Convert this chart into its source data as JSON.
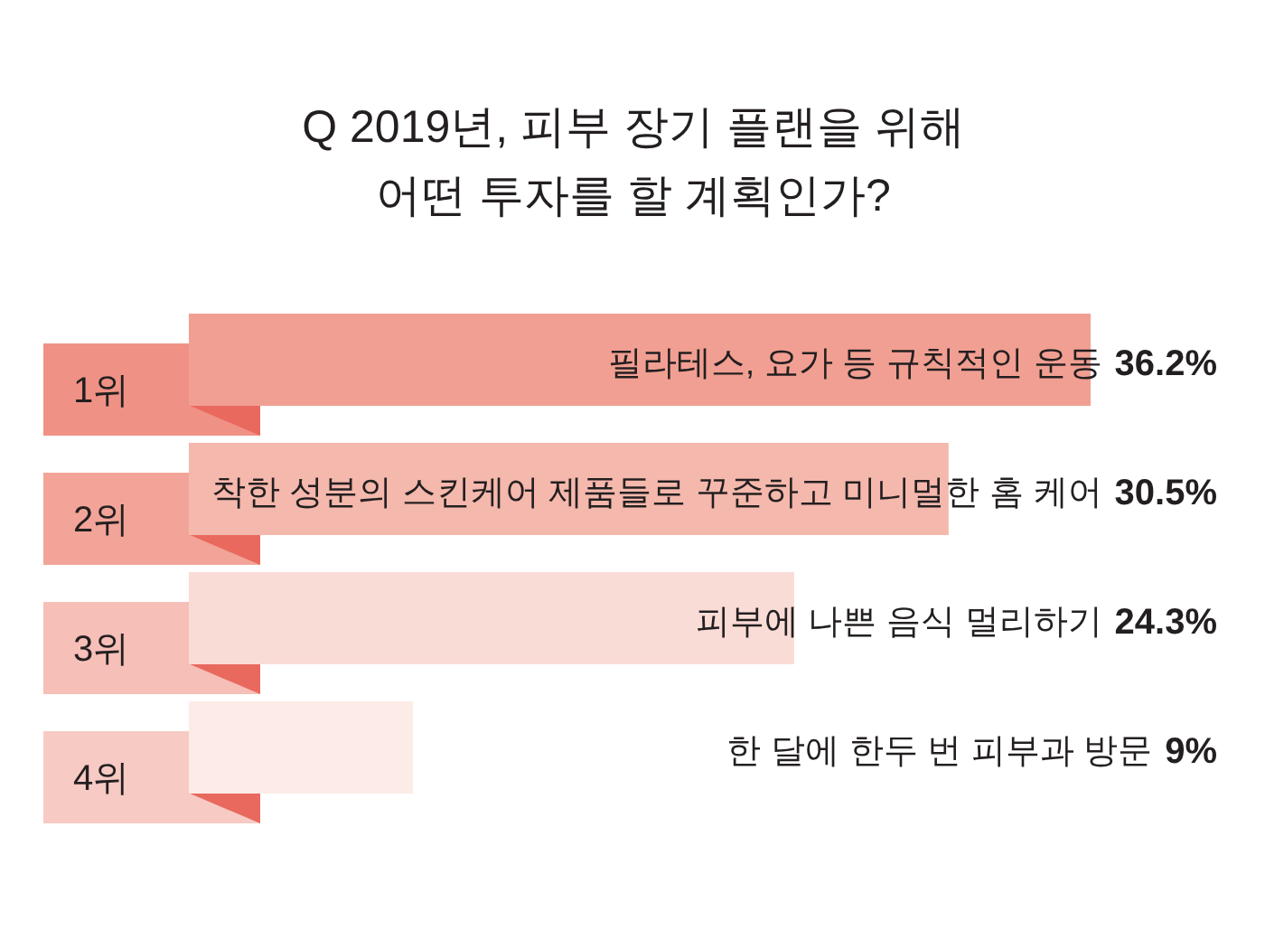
{
  "chart_data": {
    "type": "bar",
    "orientation": "horizontal",
    "title": "Q 2019년, 피부 장기 플랜을 위해\n어떤 투자를 할 계획인가?",
    "categories": [
      "1위",
      "2위",
      "3위",
      "4위"
    ],
    "values": [
      36.2,
      30.5,
      24.3,
      9
    ],
    "colors": [
      "#f19f92",
      "#f5b8ac",
      "#fadcd6",
      "#fcebe6"
    ],
    "value_labels": [
      "36.2%",
      "30.5%",
      "24.3%",
      "9%"
    ],
    "annotations": [
      "필라테스, 요가 등 규칙적인 운동",
      "착한 성분의 스킨케어 제품들로 꾸준하고 미니멀한 홈 케어",
      "피부에 나쁜 음식 멀리하기",
      "한 달에 한두 번 피부과 방문"
    ]
  }
}
